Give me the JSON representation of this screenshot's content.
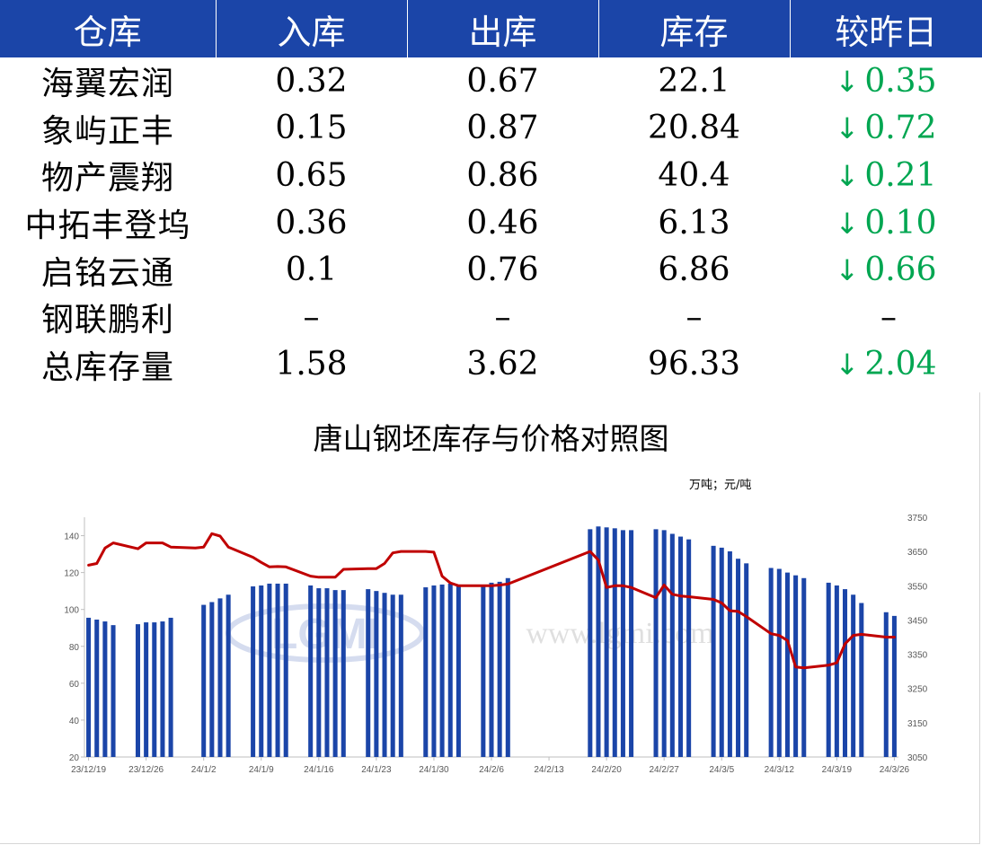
{
  "table": {
    "headers": [
      "仓库",
      "入库",
      "出库",
      "库存",
      "较昨日"
    ],
    "rows": [
      {
        "name": "海翼宏润",
        "in": "0.32",
        "out": "0.67",
        "stock": "22.1",
        "arrow": "↓",
        "change": "0.35"
      },
      {
        "name": "象屿正丰",
        "in": "0.15",
        "out": "0.87",
        "stock": "20.84",
        "arrow": "↓",
        "change": "0.72"
      },
      {
        "name": "物产震翔",
        "in": "0.65",
        "out": "0.86",
        "stock": "40.4",
        "arrow": "↓",
        "change": "0.21"
      },
      {
        "name": "中拓丰登坞",
        "in": "0.36",
        "out": "0.46",
        "stock": "6.13",
        "arrow": "↓",
        "change": "0.10"
      },
      {
        "name": "启铭云通",
        "in": "0.1",
        "out": "0.76",
        "stock": "6.86",
        "arrow": "↓",
        "change": "0.66"
      },
      {
        "name": "钢联鹏利",
        "in": "–",
        "out": "–",
        "stock": "–",
        "arrow": "",
        "change": "–"
      },
      {
        "name": "总库存量",
        "in": "1.58",
        "out": "3.62",
        "stock": "96.33",
        "arrow": "↓",
        "change": "2.04"
      }
    ]
  },
  "colors": {
    "header_bg": "#1b45a8",
    "down": "#00a651",
    "bar": "#1b45a8",
    "line": "#c00000"
  },
  "watermark": {
    "logo": "LGMI",
    "url": "www.lgmi.com"
  },
  "chart_data": {
    "type": "bar+line",
    "title": "唐山钢坯库存与价格对照图",
    "unit_label": "万吨；元/吨",
    "x_tick_labels": [
      "23/12/19",
      "23/12/26",
      "24/1/2",
      "24/1/9",
      "24/1/16",
      "24/1/23",
      "24/1/30",
      "24/2/6",
      "24/2/13",
      "24/2/20",
      "24/2/27",
      "24/3/5",
      "24/3/12",
      "24/3/19",
      "24/3/26"
    ],
    "y_left": {
      "min": 20,
      "max": 150,
      "ticks": [
        20,
        40,
        60,
        80,
        100,
        120,
        140
      ]
    },
    "y_right": {
      "min": 3050,
      "max": 3750,
      "ticks": [
        3050,
        3150,
        3250,
        3350,
        3450,
        3550,
        3650,
        3750
      ]
    },
    "start_date": "2023-12-19",
    "end_date": "2024-03-26",
    "bars": [
      {
        "date": "2023-12-19",
        "value": 95.5
      },
      {
        "date": "2023-12-20",
        "value": 94.5
      },
      {
        "date": "2023-12-21",
        "value": 93.5
      },
      {
        "date": "2023-12-22",
        "value": 91.5
      },
      {
        "date": "2023-12-25",
        "value": 92
      },
      {
        "date": "2023-12-26",
        "value": 93
      },
      {
        "date": "2023-12-27",
        "value": 93
      },
      {
        "date": "2023-12-28",
        "value": 93.5
      },
      {
        "date": "2023-12-29",
        "value": 95.5
      },
      {
        "date": "2024-01-02",
        "value": 102.5
      },
      {
        "date": "2024-01-03",
        "value": 104
      },
      {
        "date": "2024-01-04",
        "value": 106
      },
      {
        "date": "2024-01-05",
        "value": 108
      },
      {
        "date": "2024-01-08",
        "value": 112.5
      },
      {
        "date": "2024-01-09",
        "value": 113
      },
      {
        "date": "2024-01-10",
        "value": 114
      },
      {
        "date": "2024-01-11",
        "value": 114
      },
      {
        "date": "2024-01-12",
        "value": 114
      },
      {
        "date": "2024-01-15",
        "value": 113
      },
      {
        "date": "2024-01-16",
        "value": 111.5
      },
      {
        "date": "2024-01-17",
        "value": 111.5
      },
      {
        "date": "2024-01-18",
        "value": 110.5
      },
      {
        "date": "2024-01-19",
        "value": 110.5
      },
      {
        "date": "2024-01-22",
        "value": 111
      },
      {
        "date": "2024-01-23",
        "value": 110
      },
      {
        "date": "2024-01-24",
        "value": 109
      },
      {
        "date": "2024-01-25",
        "value": 108
      },
      {
        "date": "2024-01-26",
        "value": 108
      },
      {
        "date": "2024-01-29",
        "value": 112
      },
      {
        "date": "2024-01-30",
        "value": 113
      },
      {
        "date": "2024-01-31",
        "value": 113.5
      },
      {
        "date": "2024-02-01",
        "value": 114
      },
      {
        "date": "2024-02-02",
        "value": 113.5
      },
      {
        "date": "2024-02-05",
        "value": 112.5
      },
      {
        "date": "2024-02-06",
        "value": 114.5
      },
      {
        "date": "2024-02-07",
        "value": 115
      },
      {
        "date": "2024-02-08",
        "value": 117
      },
      {
        "date": "2024-02-18",
        "value": 143.5
      },
      {
        "date": "2024-02-19",
        "value": 145
      },
      {
        "date": "2024-02-20",
        "value": 144.5
      },
      {
        "date": "2024-02-21",
        "value": 144
      },
      {
        "date": "2024-02-22",
        "value": 143
      },
      {
        "date": "2024-02-23",
        "value": 143
      },
      {
        "date": "2024-02-26",
        "value": 143.5
      },
      {
        "date": "2024-02-27",
        "value": 143
      },
      {
        "date": "2024-02-28",
        "value": 141
      },
      {
        "date": "2024-02-29",
        "value": 139.5
      },
      {
        "date": "2024-03-01",
        "value": 138
      },
      {
        "date": "2024-03-04",
        "value": 134.5
      },
      {
        "date": "2024-03-05",
        "value": 133.5
      },
      {
        "date": "2024-03-06",
        "value": 131.5
      },
      {
        "date": "2024-03-07",
        "value": 127.5
      },
      {
        "date": "2024-03-08",
        "value": 125
      },
      {
        "date": "2024-03-11",
        "value": 122.5
      },
      {
        "date": "2024-03-12",
        "value": 122
      },
      {
        "date": "2024-03-13",
        "value": 120
      },
      {
        "date": "2024-03-14",
        "value": 118.5
      },
      {
        "date": "2024-03-15",
        "value": 117
      },
      {
        "date": "2024-03-18",
        "value": 114.5
      },
      {
        "date": "2024-03-19",
        "value": 113
      },
      {
        "date": "2024-03-20",
        "value": 111
      },
      {
        "date": "2024-03-21",
        "value": 108
      },
      {
        "date": "2024-03-22",
        "value": 103.5
      },
      {
        "date": "2024-03-25",
        "value": 98.5
      },
      {
        "date": "2024-03-26",
        "value": 96.5
      }
    ],
    "price_line": [
      {
        "date": "2023-12-19",
        "value": 3610
      },
      {
        "date": "2023-12-20",
        "value": 3615
      },
      {
        "date": "2023-12-21",
        "value": 3660
      },
      {
        "date": "2023-12-22",
        "value": 3675
      },
      {
        "date": "2023-12-25",
        "value": 3658
      },
      {
        "date": "2023-12-26",
        "value": 3675
      },
      {
        "date": "2023-12-27",
        "value": 3675
      },
      {
        "date": "2023-12-28",
        "value": 3675
      },
      {
        "date": "2023-12-29",
        "value": 3663
      },
      {
        "date": "2024-01-01",
        "value": 3660
      },
      {
        "date": "2024-01-02",
        "value": 3663
      },
      {
        "date": "2024-01-03",
        "value": 3702
      },
      {
        "date": "2024-01-04",
        "value": 3695
      },
      {
        "date": "2024-01-05",
        "value": 3663
      },
      {
        "date": "2024-01-08",
        "value": 3633
      },
      {
        "date": "2024-01-09",
        "value": 3618
      },
      {
        "date": "2024-01-10",
        "value": 3605
      },
      {
        "date": "2024-01-11",
        "value": 3606
      },
      {
        "date": "2024-01-12",
        "value": 3605
      },
      {
        "date": "2024-01-15",
        "value": 3578
      },
      {
        "date": "2024-01-16",
        "value": 3575
      },
      {
        "date": "2024-01-17",
        "value": 3575
      },
      {
        "date": "2024-01-18",
        "value": 3575
      },
      {
        "date": "2024-01-19",
        "value": 3598
      },
      {
        "date": "2024-01-22",
        "value": 3600
      },
      {
        "date": "2024-01-23",
        "value": 3600
      },
      {
        "date": "2024-01-24",
        "value": 3615
      },
      {
        "date": "2024-01-25",
        "value": 3646
      },
      {
        "date": "2024-01-26",
        "value": 3650
      },
      {
        "date": "2024-01-29",
        "value": 3650
      },
      {
        "date": "2024-01-30",
        "value": 3648
      },
      {
        "date": "2024-01-31",
        "value": 3578
      },
      {
        "date": "2024-02-01",
        "value": 3558
      },
      {
        "date": "2024-02-02",
        "value": 3550
      },
      {
        "date": "2024-02-05",
        "value": 3550
      },
      {
        "date": "2024-02-06",
        "value": 3550
      },
      {
        "date": "2024-02-07",
        "value": 3552
      },
      {
        "date": "2024-02-08",
        "value": 3555
      },
      {
        "date": "2024-02-18",
        "value": 3650
      },
      {
        "date": "2024-02-19",
        "value": 3625
      },
      {
        "date": "2024-02-20",
        "value": 3545
      },
      {
        "date": "2024-02-21",
        "value": 3550
      },
      {
        "date": "2024-02-22",
        "value": 3550
      },
      {
        "date": "2024-02-23",
        "value": 3545
      },
      {
        "date": "2024-02-26",
        "value": 3515
      },
      {
        "date": "2024-02-27",
        "value": 3552
      },
      {
        "date": "2024-02-28",
        "value": 3525
      },
      {
        "date": "2024-02-29",
        "value": 3520
      },
      {
        "date": "2024-03-01",
        "value": 3518
      },
      {
        "date": "2024-03-04",
        "value": 3510
      },
      {
        "date": "2024-03-05",
        "value": 3500
      },
      {
        "date": "2024-03-06",
        "value": 3477
      },
      {
        "date": "2024-03-07",
        "value": 3475
      },
      {
        "date": "2024-03-08",
        "value": 3460
      },
      {
        "date": "2024-03-11",
        "value": 3410
      },
      {
        "date": "2024-03-12",
        "value": 3405
      },
      {
        "date": "2024-03-13",
        "value": 3390
      },
      {
        "date": "2024-03-14",
        "value": 3313
      },
      {
        "date": "2024-03-15",
        "value": 3310
      },
      {
        "date": "2024-03-18",
        "value": 3318
      },
      {
        "date": "2024-03-19",
        "value": 3325
      },
      {
        "date": "2024-03-20",
        "value": 3380
      },
      {
        "date": "2024-03-21",
        "value": 3405
      },
      {
        "date": "2024-03-22",
        "value": 3408
      },
      {
        "date": "2024-03-25",
        "value": 3400
      },
      {
        "date": "2024-03-26",
        "value": 3400
      }
    ]
  }
}
